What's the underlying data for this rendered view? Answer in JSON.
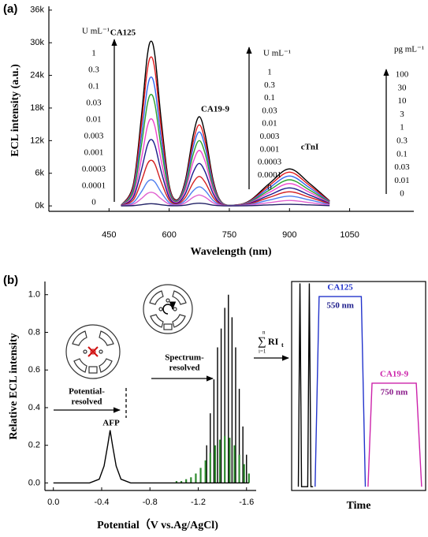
{
  "chart_data": [
    {
      "type": "line",
      "panel_label": "(a)",
      "xlabel": "Wavelength (nm)",
      "ylabel": "ECL intensity (a.u.)",
      "xlim": [
        300,
        1210
      ],
      "ylim": [
        -1000,
        36700
      ],
      "xticks": [
        450,
        600,
        750,
        900,
        1050
      ],
      "yticks": [
        {
          "value": 0,
          "label": "0k"
        },
        {
          "value": 6000,
          "label": "6k"
        },
        {
          "value": 12000,
          "label": "12k"
        },
        {
          "value": 18000,
          "label": "18k"
        },
        {
          "value": 24000,
          "label": "24k"
        },
        {
          "value": 30000,
          "label": "30k"
        },
        {
          "value": 36000,
          "label": "36k"
        }
      ],
      "x": [
        480,
        510,
        530,
        545,
        555,
        565,
        580,
        600,
        620,
        640,
        660,
        675,
        690,
        710,
        730,
        760,
        800,
        850,
        900,
        950,
        1000
      ],
      "series": [
        {
          "color": "#000000",
          "values": [
            90,
            3760,
            15880,
            27330,
            30300,
            27330,
            15880,
            3810,
            1120,
            4610,
            13010,
            16400,
            13010,
            4610,
            740,
            140,
            920,
            4130,
            6800,
            4130,
            920
          ]
        },
        {
          "color": "#e41a1c",
          "values": [
            80,
            3400,
            14360,
            24710,
            27400,
            24710,
            14360,
            3440,
            1010,
            4190,
            11820,
            14900,
            11820,
            4190,
            680,
            120,
            840,
            3760,
            6200,
            3760,
            840
          ]
        },
        {
          "color": "#3366ee",
          "values": [
            70,
            2940,
            12420,
            21380,
            23700,
            21380,
            12420,
            2980,
            910,
            3820,
            10790,
            13600,
            10790,
            3820,
            620,
            110,
            740,
            3340,
            5500,
            3340,
            740
          ]
        },
        {
          "color": "#2ca02c",
          "values": [
            60,
            2540,
            10740,
            18490,
            20500,
            18490,
            10740,
            2580,
            800,
            3370,
            9520,
            12000,
            9520,
            3370,
            540,
            100,
            650,
            2910,
            4800,
            2910,
            650
          ]
        },
        {
          "color": "#ee44cc",
          "values": [
            50,
            1980,
            8380,
            14430,
            16000,
            14430,
            8380,
            2020,
            660,
            2870,
            8090,
            10200,
            8090,
            2870,
            460,
            80,
            550,
            2490,
            4100,
            2490,
            550
          ]
        },
        {
          "color": "#1c1c8c",
          "values": [
            40,
            1510,
            6390,
            11000,
            12200,
            11000,
            6390,
            1540,
            500,
            2190,
            6190,
            7800,
            6190,
            2190,
            350,
            70,
            450,
            2000,
            3300,
            2000,
            450
          ]
        },
        {
          "color": "#d42020",
          "values": [
            30,
            1040,
            4400,
            7580,
            8400,
            7580,
            4400,
            1060,
            350,
            1520,
            4280,
            5400,
            4280,
            1520,
            250,
            50,
            350,
            1580,
            2600,
            1580,
            350
          ]
        },
        {
          "color": "#4f7fef",
          "values": [
            10,
            600,
            2520,
            4330,
            4800,
            4330,
            2520,
            610,
            220,
            980,
            2780,
            3500,
            2780,
            980,
            160,
            40,
            240,
            1090,
            1800,
            1090,
            240
          ]
        },
        {
          "color": "#e060d0",
          "values": [
            10,
            310,
            1310,
            2260,
            2500,
            2260,
            1310,
            320,
            120,
            560,
            1590,
            2000,
            1590,
            560,
            90,
            20,
            140,
            610,
            1000,
            610,
            140
          ]
        },
        {
          "color": "#222266",
          "values": [
            0,
            50,
            210,
            360,
            400,
            360,
            210,
            50,
            30,
            140,
            400,
            500,
            400,
            140,
            20,
            10,
            40,
            180,
            300,
            180,
            40
          ]
        }
      ],
      "annotations": [
        {
          "text": "CA125",
          "unit": "U mL⁻¹",
          "levels": [
            "1",
            "0.3",
            "0.1",
            "0.03",
            "0.01",
            "0.003",
            "0.001",
            "0.0003",
            "0.0001",
            "0"
          ]
        },
        {
          "text": "CA19-9",
          "unit": "U mL⁻¹",
          "levels": [
            "1",
            "0.3",
            "0.1",
            "0.03",
            "0.01",
            "0.003",
            "0.001",
            "0.0003",
            "0.0001",
            "0"
          ]
        },
        {
          "text": "cTnI",
          "unit": "pg mL⁻¹",
          "levels": [
            "100",
            "30",
            "10",
            "3",
            "1",
            "0.3",
            "0.1",
            "0.03",
            "0.01",
            "0"
          ]
        }
      ]
    },
    {
      "type": "line",
      "panel_label": "(b)",
      "xlabel": "Potential（V vs.Ag/AgCl)",
      "ylabel": "Relative ECL intensity",
      "xlim": [
        0.07,
        -1.68
      ],
      "ylim": [
        -0.04,
        1.07
      ],
      "xticks": [
        {
          "value": 0,
          "label": "0.0"
        },
        -0.4,
        -0.8,
        -1.2,
        -1.6
      ],
      "yticks": [
        {
          "value": 0,
          "label": "0.0"
        },
        0.2,
        0.4,
        0.6,
        0.8,
        {
          "value": 1,
          "label": "1.0"
        }
      ],
      "series": [
        {
          "color": "#000000",
          "x": [
            0,
            -0.3,
            -0.38,
            -0.42,
            -0.45,
            -0.47,
            -0.49,
            -0.52,
            -0.56,
            -0.64,
            -1.62
          ],
          "values": [
            0,
            0,
            0.02,
            0.09,
            0.2,
            0.28,
            0.2,
            0.09,
            0.02,
            0,
            0
          ]
        }
      ],
      "spikes": [
        {
          "color": "#000000",
          "x": [
            -1.27,
            -1.3,
            -1.33,
            -1.36,
            -1.39,
            -1.42,
            -1.45,
            -1.48,
            -1.51,
            -1.54,
            -1.57,
            -1.6
          ],
          "values": [
            0.2,
            0.37,
            0.55,
            0.72,
            0.82,
            0.93,
            1.0,
            0.88,
            0.72,
            0.5,
            0.3,
            0.15
          ]
        },
        {
          "color": "#2e8b2e",
          "x": [
            -1.02,
            -1.06,
            -1.1,
            -1.14,
            -1.18,
            -1.22,
            -1.26,
            -1.3,
            -1.34,
            -1.38,
            -1.42,
            -1.46,
            -1.5,
            -1.54,
            -1.58,
            -1.62
          ],
          "values": [
            0.01,
            0.01,
            0.02,
            0.03,
            0.05,
            0.08,
            0.12,
            0.16,
            0.2,
            0.23,
            0.25,
            0.24,
            0.2,
            0.15,
            0.1,
            0.05
          ]
        }
      ],
      "peak_label": "AFP",
      "potential_resolved": [
        "Potential-",
        "resolved"
      ],
      "spectrum_resolved": [
        "Spectrum-",
        "resolved"
      ],
      "formula": {
        "sum": "∑",
        "upper": "n",
        "lower": "i=1",
        "body": "RI",
        "sub": "t"
      }
    },
    {
      "type": "line",
      "xlabel": "Time",
      "xlim": [
        0,
        10
      ],
      "ylim": [
        -0.04,
        1.07
      ],
      "series": [
        {
          "color": "#000000",
          "x": [
            0.5,
            0.62,
            0.74,
            1.2,
            1.32,
            1.44,
            1.6
          ],
          "values": [
            -0.02,
            1.06,
            -0.02,
            -0.02,
            1.06,
            -0.02,
            -0.02
          ]
        },
        {
          "name": "CA125",
          "annotation": "550 nm",
          "color": "#2233cc",
          "annotation_color": "#1a1a8a",
          "x": [
            1.75,
            2.05,
            5.2,
            5.5
          ],
          "values": [
            -0.02,
            0.99,
            0.99,
            -0.02
          ]
        },
        {
          "name": "CA19-9",
          "annotation": "750 nm",
          "color": "#cc22aa",
          "annotation_color": "#8a1a8a",
          "x": [
            5.7,
            6.0,
            9.3,
            9.7
          ],
          "values": [
            -0.02,
            0.53,
            0.53,
            -0.02
          ]
        }
      ]
    }
  ]
}
